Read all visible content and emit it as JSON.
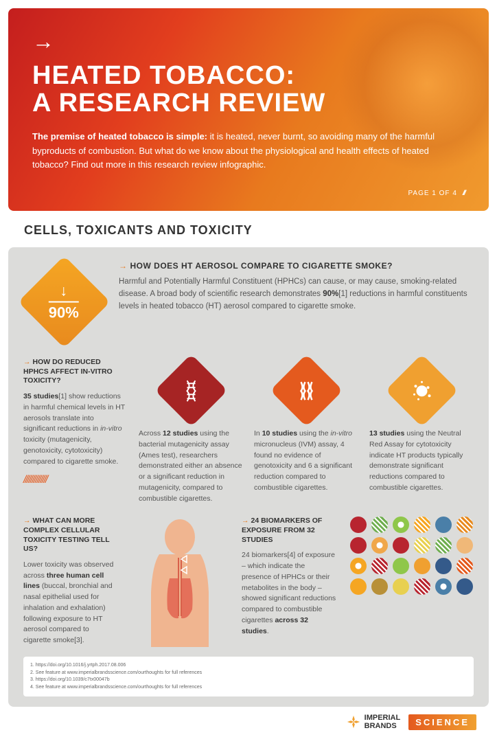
{
  "hero": {
    "title_line1": "HEATED TOBACCO:",
    "title_line2": "A RESEARCH REVIEW",
    "intro_bold": "The premise of heated tobacco is simple:",
    "intro_rest": " it is heated, never burnt, so avoiding many of the harmful byproducts of combustion. But what do we know about the physiological and health effects of heated tobacco? Find out more in this research review infographic.",
    "page": "PAGE 1 OF 4"
  },
  "section": "CELLS, TOXICANTS AND TOXICITY",
  "badge": {
    "arrow": "↓",
    "pct": "90%"
  },
  "q1": {
    "title": "HOW DOES HT AEROSOL COMPARE TO CIGARETTE SMOKE?",
    "text_a": "Harmful and Potentially Harmful Constituent (HPHCs) can cause, or may cause, smoking-related disease. A broad body of scientific research demonstrates ",
    "text_b": "90%",
    "text_c": "[1] reductions in harmful constituents levels in heated tobacco (HT) aerosol compared to cigarette smoke."
  },
  "col1": {
    "title": "HOW DO REDUCED HPHCS AFFECT IN-VITRO TOXICITY?",
    "text_a": "35 studies",
    "text_b": "[1] show reductions in harmful chemical levels in HT aerosols translate into significant reductions in ",
    "text_c": "in-vitro",
    "text_d": " toxicity (mutagenicity, genotoxicity, cytotoxicity) compared to cigarette smoke."
  },
  "col2": {
    "text_a": "Across ",
    "text_b": "12 studies",
    "text_c": " using the bacterial mutagenicity assay (Ames test), researchers demonstrated either an absence or a significant reduction in mutagenicity, compared to combustible cigarettes."
  },
  "col3": {
    "text_a": "In ",
    "text_b": "10 studies",
    "text_c": " using the ",
    "text_d": "in-vitro",
    "text_e": " micronucleus (IVM) assay, 4 found no evidence of genotoxicity and 6 a significant reduction compared to combustible cigarettes."
  },
  "col4": {
    "text_a": "",
    "text_b": "13 studies",
    "text_c": " using the Neutral Red Assay for cytotoxicity indicate HT products typically demonstrate significant reductions compared to combustible cigarettes."
  },
  "q2": {
    "title": "WHAT CAN MORE COMPLEX CELLULAR TOXICITY TESTING TELL US?",
    "text_a": "Lower toxicity was observed across ",
    "text_b": "three human cell lines",
    "text_c": " (buccal, bronchial and nasal epithelial used for inhalation and exhalation) following exposure to HT aerosol compared to cigarette smoke[3]."
  },
  "q3": {
    "title": "24 BIOMARKERS OF EXPOSURE FROM 32 STUDIES",
    "text_a": "24 biomarkers[4] of exposure – which indicate the presence of HPHCs or their metabolites in the body – showed significant reductions compared to combustible cigarettes ",
    "text_b": "across 32 studies",
    "text_c": "."
  },
  "dots": [
    "#b8252f",
    "#6fae4f",
    "#8fc74a",
    "#f5a623",
    "#4a7fa8",
    "#e88a1e",
    "#b8252f",
    "#f0a74a",
    "#b8252f",
    "#e8d050",
    "#6fae4f",
    "#f0b878",
    "#f5a623",
    "#b8252f",
    "#8fc74a",
    "#f0a030",
    "#345a8a",
    "#e45a1e",
    "#f5a623",
    "#b89038",
    "#e8d050",
    "#b8252f",
    "#4a7fa8",
    "#345a8a"
  ],
  "refs": {
    "r1": "1.    https://doi.org/10.1016/j.yrtph.2017.08.006",
    "r2": "2.   See feature at www.imperialbrandsscience.com/ourthoughts for full references",
    "r3": "3.   https://doi.org/10.1039/c7tx00047b",
    "r4": "4.   See feature at www.imperialbrandsscience.com/ourthoughts for full references"
  },
  "footer": {
    "brand1a": "IMPERIAL",
    "brand1b": "BRANDS",
    "brand2": "SCIENCE"
  }
}
